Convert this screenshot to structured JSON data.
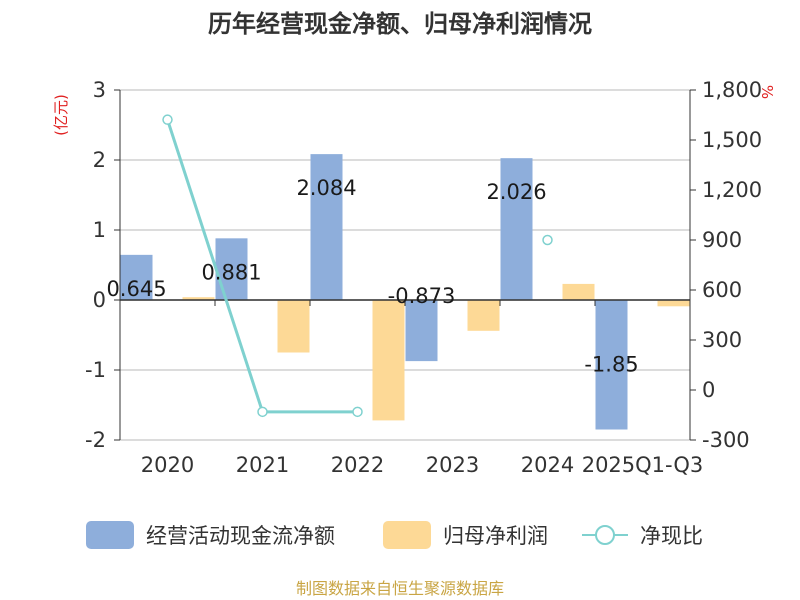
{
  "chart_data": {
    "type": "bar",
    "title": "历年经营现金净额、归母净利润情况",
    "left_axis_unit": "(亿元)",
    "right_axis_unit": "%",
    "categories": [
      "2020",
      "2021",
      "2022",
      "2023",
      "2024",
      "2025Q1-Q3"
    ],
    "ylim_left": [
      -2,
      3
    ],
    "yticks_left": [
      3,
      2,
      1,
      0,
      -1,
      -2
    ],
    "ylim_right": [
      -300,
      1800
    ],
    "yticks_right": [
      "1,800",
      "1,500",
      "1,200",
      "900",
      "600",
      "300",
      "0",
      "-300"
    ],
    "yticks_right_values": [
      1800,
      1500,
      1200,
      900,
      600,
      300,
      0,
      -300
    ],
    "series": [
      {
        "name": "经营活动现金流净额",
        "kind": "bar",
        "axis": "left",
        "color": "#8eaedb",
        "values": [
          0.645,
          0.881,
          2.084,
          -0.873,
          2.026,
          -1.85
        ],
        "labels": [
          "0.645",
          "0.881",
          "2.084",
          "-0.873",
          "2.026",
          "-1.85"
        ]
      },
      {
        "name": "归母净利润",
        "kind": "bar",
        "axis": "left",
        "color": "#fdd996",
        "values": [
          0.04,
          -0.75,
          -1.72,
          -0.44,
          0.23,
          -0.09
        ]
      },
      {
        "name": "净现比",
        "kind": "line",
        "axis": "right",
        "color": "#7fd1cf",
        "values": [
          1622,
          -131,
          -131,
          null,
          900,
          null
        ]
      }
    ],
    "grid": true,
    "legend_position": "bottom",
    "source": "制图数据来自恒生聚源数据库",
    "source_color": "#c9a544"
  }
}
